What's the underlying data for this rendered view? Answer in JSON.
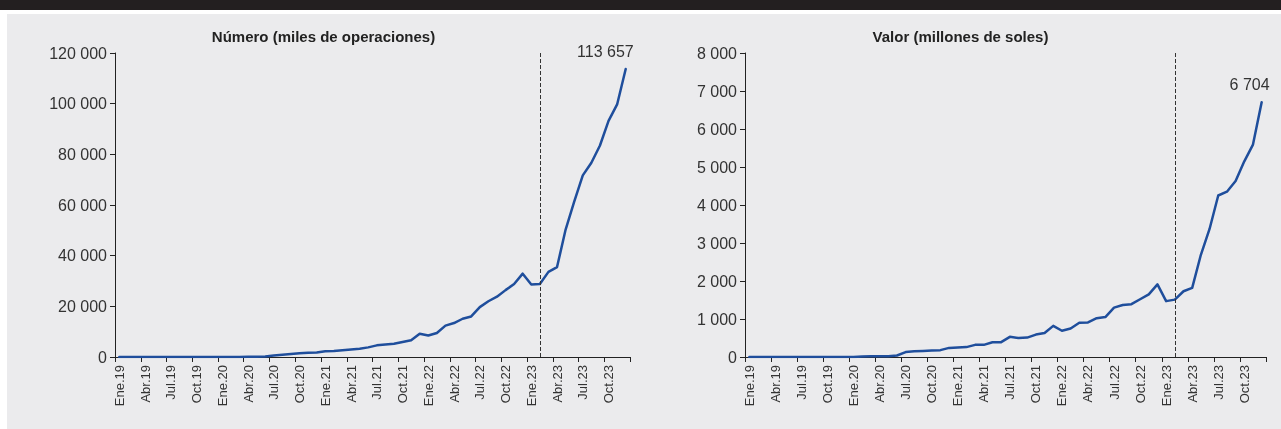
{
  "chart_data": [
    {
      "type": "line",
      "title": "Número (miles de operaciones)",
      "categories": [
        "Ene.19",
        null,
        null,
        "Abr.19",
        null,
        null,
        "Jul.19",
        null,
        null,
        "Oct.19",
        null,
        null,
        "Ene.20",
        null,
        null,
        "Abr.20",
        null,
        null,
        "Jul.20",
        null,
        null,
        "Oct.20",
        null,
        null,
        "Ene.21",
        null,
        null,
        "Abr.21",
        null,
        null,
        "Jul.21",
        null,
        null,
        "Oct.21",
        null,
        null,
        "Ene.22",
        null,
        null,
        "Abr.22",
        null,
        null,
        "Jul.22",
        null,
        null,
        "Oct.22",
        null,
        null,
        "Ene.23",
        null,
        null,
        "Abr.23",
        null,
        null,
        "Jul.23",
        null,
        null,
        "Oct.23",
        null,
        null
      ],
      "series": [
        {
          "color": "#1f4e9c",
          "values": [
            0,
            0,
            0,
            0,
            0,
            0,
            0,
            0,
            0,
            0,
            0,
            0,
            0,
            0,
            0,
            100,
            100,
            200,
            600,
            900,
            1200,
            1500,
            1700,
            1800,
            2300,
            2400,
            2700,
            3000,
            3300,
            3800,
            4600,
            4900,
            5200,
            5900,
            6600,
            9200,
            8500,
            9500,
            12400,
            13400,
            15100,
            16000,
            19700,
            22000,
            23800,
            26400,
            28800,
            32900,
            28600,
            28800,
            33600,
            35500,
            50300,
            61300,
            71700,
            76700,
            83500,
            93200,
            99700,
            113657
          ],
          "value_labels": [
            null,
            null,
            null,
            null,
            null,
            null,
            null,
            null,
            null,
            null,
            null,
            null,
            null,
            null,
            null,
            null,
            null,
            null,
            null,
            null,
            null,
            null,
            null,
            null,
            null,
            null,
            null,
            null,
            null,
            null,
            null,
            null,
            null,
            null,
            null,
            null,
            null,
            null,
            null,
            null,
            null,
            null,
            null,
            null,
            null,
            null,
            null,
            null,
            null,
            null,
            null,
            null,
            null,
            null,
            null,
            null,
            null,
            null,
            null,
            "113 657"
          ]
        }
      ],
      "ylim": [
        0,
        120000
      ],
      "yticks": [
        {
          "value": 0,
          "label": "0"
        },
        {
          "value": 20000,
          "label": "20 000"
        },
        {
          "value": 40000,
          "label": "40 000"
        },
        {
          "value": 60000,
          "label": "60 000"
        },
        {
          "value": 80000,
          "label": "80 000"
        },
        {
          "value": 100000,
          "label": "100 000"
        },
        {
          "value": 120000,
          "label": "120 000"
        }
      ],
      "marker": "none",
      "grid": false,
      "line_style": "solid"
    },
    {
      "type": "line",
      "title": "Valor (millones de soles)",
      "categories": [
        "Ene.19",
        null,
        null,
        "Abr.19",
        null,
        null,
        "Jul.19",
        null,
        null,
        "Oct.19",
        null,
        null,
        "Ene.20",
        null,
        null,
        "Abr.20",
        null,
        null,
        "Jul.20",
        null,
        null,
        "Oct.20",
        null,
        null,
        "Ene.21",
        null,
        null,
        "Abr.21",
        null,
        null,
        "Jul.21",
        null,
        null,
        "Oct.21",
        null,
        null,
        "Ene.22",
        null,
        null,
        "Abr.22",
        null,
        null,
        "Jul.22",
        null,
        null,
        "Oct.22",
        null,
        null,
        "Ene.23",
        null,
        null,
        "Abr.23",
        null,
        null,
        "Jul.23",
        null,
        null,
        "Oct.23",
        null,
        null
      ],
      "series": [
        {
          "color": "#1f4e9c",
          "values": [
            0,
            0,
            0,
            0,
            0,
            0,
            0,
            0,
            0,
            0,
            0,
            0,
            0,
            10,
            20,
            20,
            20,
            40,
            130,
            150,
            160,
            170,
            180,
            240,
            250,
            260,
            320,
            320,
            390,
            390,
            530,
            500,
            510,
            590,
            630,
            820,
            690,
            750,
            900,
            910,
            1020,
            1050,
            1300,
            1370,
            1390,
            1520,
            1650,
            1910,
            1470,
            1510,
            1730,
            1820,
            2690,
            3370,
            4250,
            4350,
            4630,
            5150,
            5590,
            6704
          ],
          "value_labels": [
            null,
            null,
            null,
            null,
            null,
            null,
            null,
            null,
            null,
            null,
            null,
            null,
            null,
            null,
            null,
            null,
            null,
            null,
            null,
            null,
            null,
            null,
            null,
            null,
            null,
            null,
            null,
            null,
            null,
            null,
            null,
            null,
            null,
            null,
            null,
            null,
            null,
            null,
            null,
            null,
            null,
            null,
            null,
            null,
            null,
            null,
            null,
            null,
            null,
            null,
            null,
            null,
            null,
            null,
            null,
            null,
            null,
            null,
            null,
            "6 704"
          ]
        }
      ],
      "ylim": [
        0,
        8000
      ],
      "yticks": [
        {
          "value": 0,
          "label": "0"
        },
        {
          "value": 1000,
          "label": "1 000"
        },
        {
          "value": 2000,
          "label": "2 000"
        },
        {
          "value": 3000,
          "label": "3 000"
        },
        {
          "value": 4000,
          "label": "4 000"
        },
        {
          "value": 5000,
          "label": "5 000"
        },
        {
          "value": 6000,
          "label": "6 000"
        },
        {
          "value": 7000,
          "label": "7 000"
        },
        {
          "value": 8000,
          "label": "8 000"
        }
      ],
      "marker": "none",
      "grid": false,
      "line_style": "solid"
    }
  ]
}
